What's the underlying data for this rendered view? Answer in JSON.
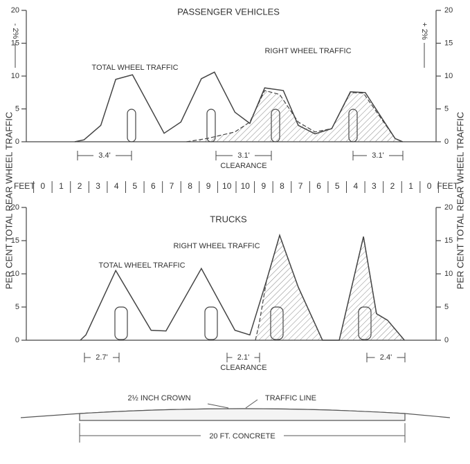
{
  "y_axis_label": "PER CENT  TOTAL REAR WHEEL TRAFFIC",
  "feet_scale": [
    "FEET",
    "0",
    "1",
    "2",
    "3",
    "4",
    "5",
    "6",
    "7",
    "8",
    "9",
    "10",
    "10",
    "9",
    "8",
    "7",
    "6",
    "5",
    "4",
    "3",
    "2",
    "1",
    "0",
    "FEET"
  ],
  "chart_data": [
    {
      "type": "line",
      "title": "PASSENGER VEHICLES",
      "xlim": [
        0,
        22
      ],
      "ylim": [
        0,
        20
      ],
      "yticks": [
        0,
        5,
        10,
        15,
        20
      ],
      "annotations": [
        "TOTAL WHEEL TRAFFIC",
        "RIGHT WHEEL TRAFFIC",
        "- 2%",
        "+ 2%"
      ],
      "clearances": [
        "3.4'",
        "3.1'",
        "3.1'"
      ],
      "clearance_label": "CLEARANCE",
      "series": [
        {
          "name": "TOTAL WHEEL TRAFFIC",
          "color": "#444",
          "x": [
            2.6,
            3.1,
            4.0,
            4.8,
            5.7,
            7.4,
            8.3,
            9.4,
            10.1,
            11.2,
            12.0,
            12.8,
            13.8,
            14.6,
            15.5,
            16.4,
            17.4,
            18.2,
            19.8,
            20.2
          ],
          "values": [
            0,
            0.3,
            2.5,
            9.5,
            10.2,
            1.3,
            3,
            9.6,
            10.6,
            4.5,
            2.8,
            8.2,
            7.8,
            2.5,
            1.2,
            2,
            7.6,
            7.5,
            0.5,
            0
          ]
        },
        {
          "name": "RIGHT WHEEL TRAFFIC",
          "color": "#444",
          "x": [
            8.6,
            9.7,
            11.2,
            12.0,
            12.8,
            13.6,
            14.6,
            15.5,
            16.4,
            17.4,
            18.1,
            19.8,
            20.2
          ],
          "values": [
            0,
            0.5,
            1.5,
            3,
            7.8,
            7.2,
            3,
            1.5,
            2,
            7.5,
            7.4,
            0.5,
            0
          ]
        }
      ]
    },
    {
      "type": "line",
      "title": "TRUCKS",
      "xlim": [
        0,
        22
      ],
      "ylim": [
        0,
        20
      ],
      "yticks": [
        0,
        5,
        10,
        15,
        20
      ],
      "annotations": [
        "TOTAL WHEEL TRAFFIC",
        "RIGHT WHEEL TRAFFIC"
      ],
      "clearances": [
        "2.7'",
        "2.1'",
        "2.4'"
      ],
      "clearance_label": "CLEARANCE",
      "series": [
        {
          "name": "TOTAL WHEEL TRAFFIC",
          "color": "#444",
          "x": [
            2.9,
            3.2,
            4.8,
            6.7,
            7.5,
            9.4,
            11.2,
            12.0,
            12.9,
            13.6,
            14.6,
            15.9,
            16.8,
            18.1,
            18.8,
            19.4,
            20.3
          ],
          "values": [
            0,
            0.8,
            10.5,
            1.5,
            1.4,
            10.8,
            1.5,
            0.8,
            9,
            15.8,
            8,
            0,
            0,
            15.6,
            4,
            3,
            0
          ]
        },
        {
          "name": "RIGHT WHEEL TRAFFIC",
          "color": "#444",
          "x": [
            12.3,
            12.5,
            12.9,
            13.6,
            14.6,
            15.9,
            null,
            16.8,
            18.1,
            18.8,
            19.4,
            20.3
          ],
          "values": [
            0,
            2.5,
            9,
            15.8,
            8,
            0,
            null,
            0,
            15.6,
            4,
            3,
            0
          ]
        }
      ]
    }
  ],
  "road": {
    "crown": "2½ INCH CROWN",
    "traffic_line": "TRAFFIC LINE",
    "width": "20 FT. CONCRETE"
  }
}
